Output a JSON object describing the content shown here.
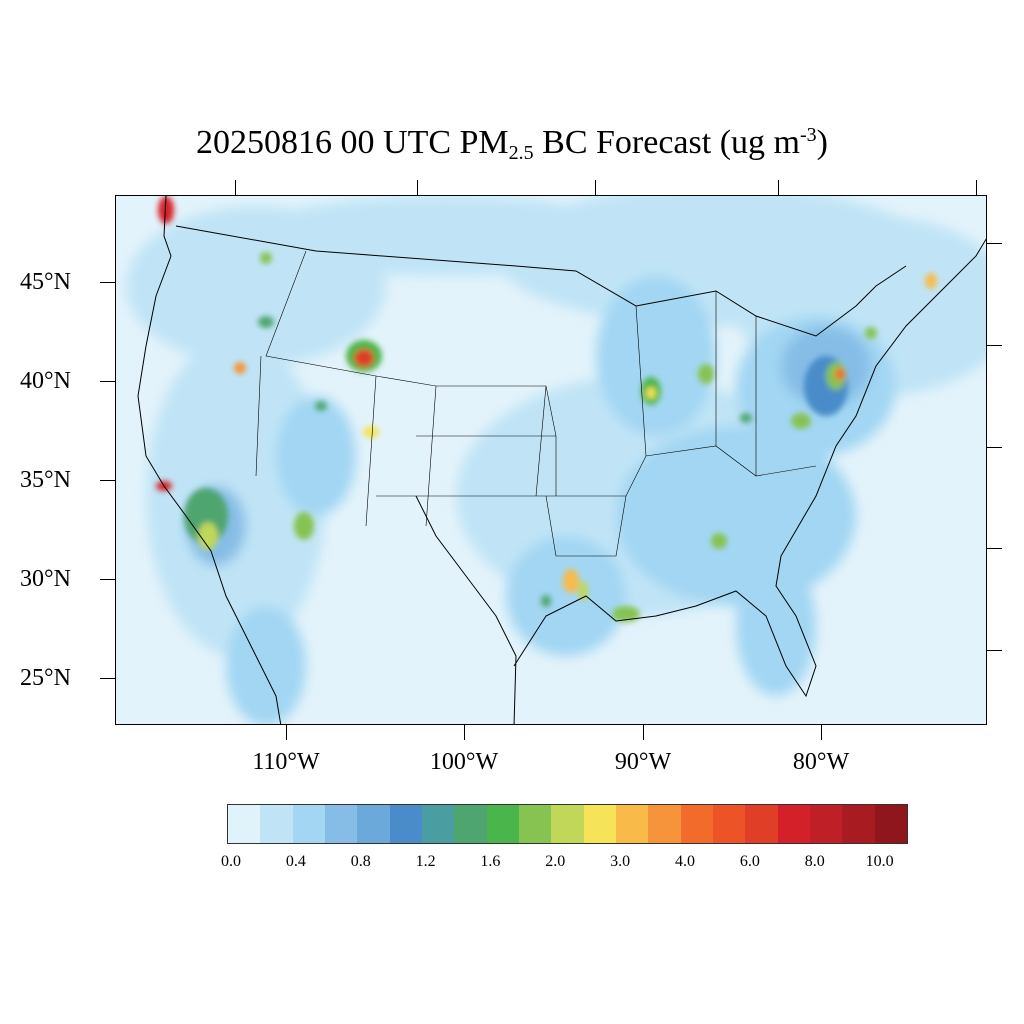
{
  "title": {
    "prefix": "20250816 00 UTC PM",
    "subscript": "2.5",
    "middle": " BC Forecast (ug m",
    "superscript": "-3",
    "suffix": ")"
  },
  "axes": {
    "lat_labels": [
      "45°N",
      "40°N",
      "35°N",
      "30°N",
      "25°N"
    ],
    "lon_labels": [
      "110°W",
      "100°W",
      "90°W",
      "80°W"
    ]
  },
  "colorbar": {
    "colors": [
      "#e0f3fb",
      "#c0e4f6",
      "#a2d6f3",
      "#86bde6",
      "#6aa9d9",
      "#4a8cc9",
      "#4a9da0",
      "#4fa56f",
      "#4ab54a",
      "#86c351",
      "#c1d75a",
      "#f5e35a",
      "#f8bb4a",
      "#f5943a",
      "#f26b2b",
      "#ec5428",
      "#e03e27",
      "#d42028",
      "#bf1f26",
      "#a81c21",
      "#8f161c"
    ],
    "labels": [
      "0.0",
      "0.4",
      "0.8",
      "1.2",
      "1.6",
      "2.0",
      "3.0",
      "4.0",
      "6.0",
      "8.0",
      "10.0"
    ]
  }
}
